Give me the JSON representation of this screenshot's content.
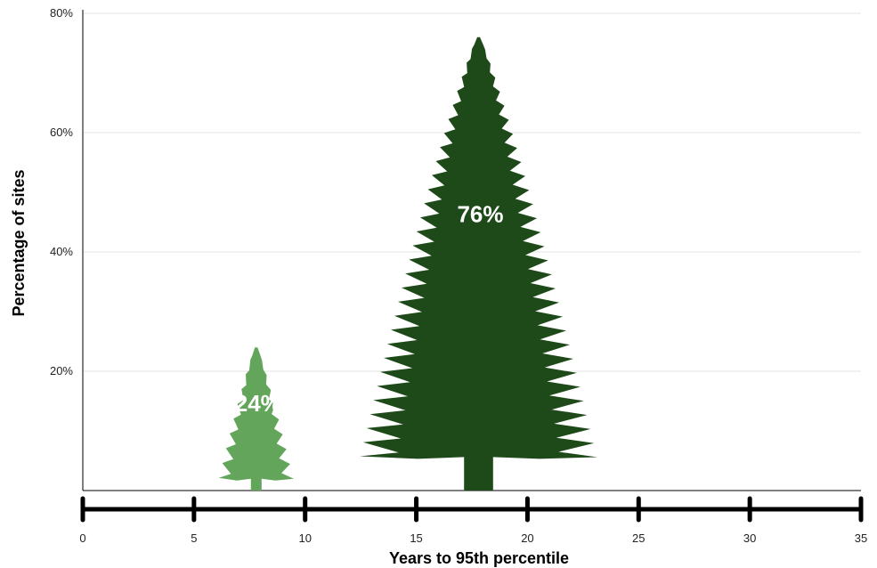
{
  "chart_data": {
    "type": "bar",
    "xlabel": "Years to 95th percentile",
    "ylabel": "Percentage of sites",
    "xlim": [
      0,
      35
    ],
    "ylim": [
      0,
      80
    ],
    "x_ticks": [
      0,
      5,
      10,
      15,
      20,
      25,
      30,
      35
    ],
    "x_tick_labels": [
      "0",
      "5",
      "10",
      "15",
      "20",
      "25",
      "30",
      "35"
    ],
    "y_ticks": [
      20,
      40,
      60,
      80
    ],
    "y_tick_labels": [
      "20%",
      "40%",
      "60%",
      "80%"
    ],
    "grid": "horizontal",
    "series": [
      {
        "mark": "tree",
        "points": [
          {
            "x": 7.8,
            "y": 24,
            "label": "24%",
            "color": "#63a65b"
          },
          {
            "x": 17.8,
            "y": 76,
            "label": "76%",
            "color": "#1e4a19"
          }
        ]
      }
    ]
  }
}
